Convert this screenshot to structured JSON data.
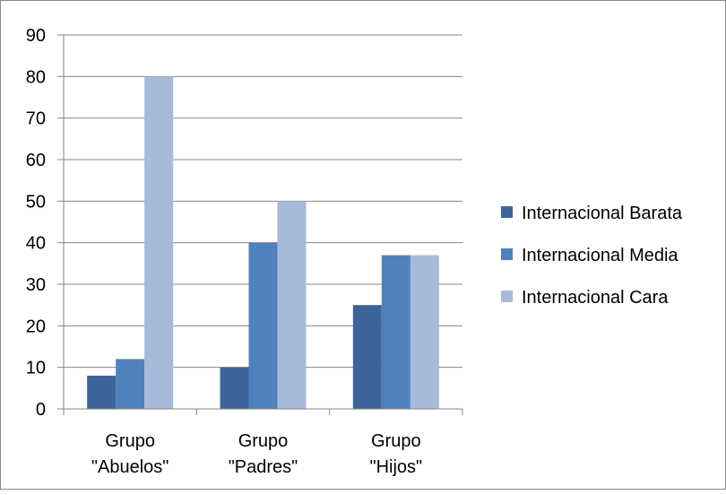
{
  "chart_data": {
    "type": "bar",
    "categories": [
      [
        "Grupo",
        "\"Abuelos\""
      ],
      [
        "Grupo",
        "\"Padres\""
      ],
      [
        "Grupo",
        "\"Hijos\""
      ]
    ],
    "series": [
      {
        "name": "Internacional Barata",
        "color": "#3e659a",
        "values": [
          8,
          10,
          25
        ]
      },
      {
        "name": "Internacional Media",
        "color": "#4f81bd",
        "values": [
          12,
          40,
          37
        ]
      },
      {
        "name": "Internacional Cara",
        "color": "#a8badb",
        "values": [
          80,
          50,
          37
        ]
      }
    ],
    "ylim": [
      0,
      90
    ],
    "yticks": [
      "0",
      "10",
      "20",
      "30",
      "40",
      "50",
      "60",
      "70",
      "80",
      "90"
    ],
    "grid": true,
    "legend_position": "right",
    "colors": {
      "gridline": "#868686",
      "axis": "#868686",
      "frame": "#868686"
    }
  }
}
